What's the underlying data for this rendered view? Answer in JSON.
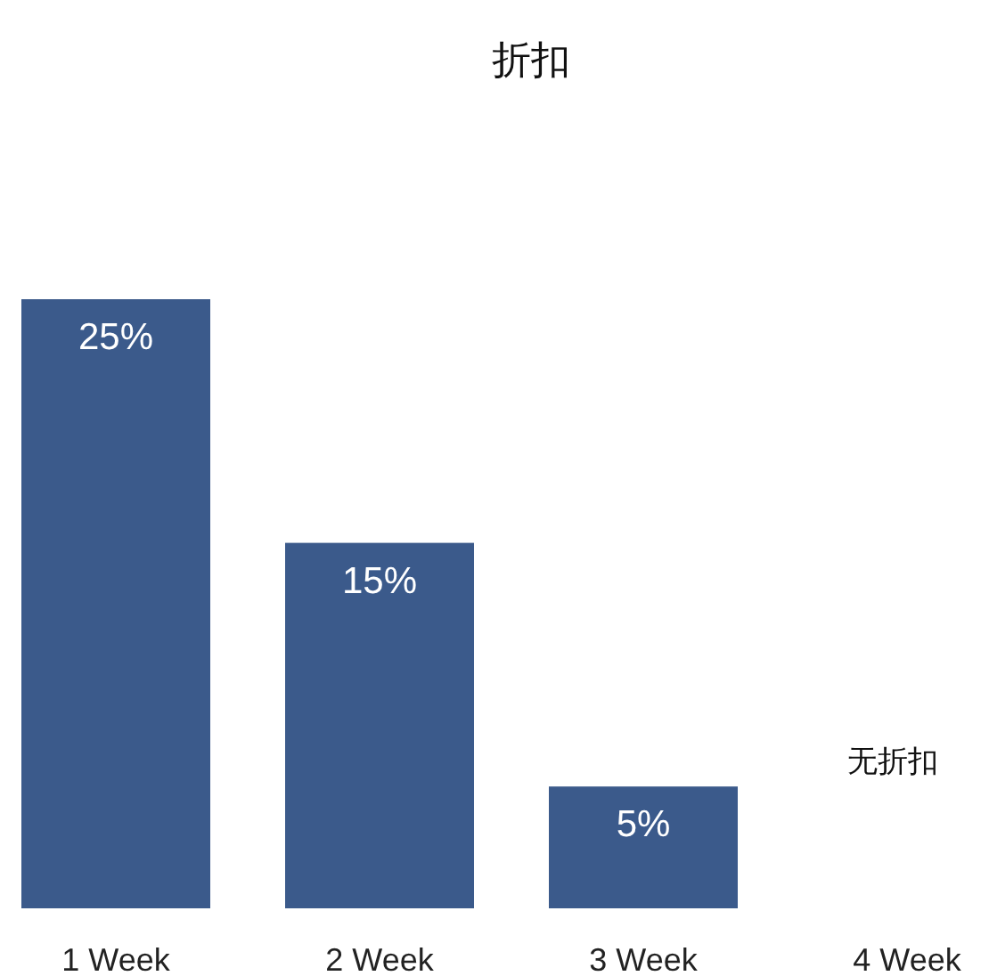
{
  "chart_data": {
    "type": "bar",
    "title": "折扣",
    "categories": [
      "1 Week",
      "2 Week",
      "3 Week",
      "4 Week"
    ],
    "values": [
      25,
      15,
      5,
      0
    ],
    "value_labels": [
      "25%",
      "15%",
      "5%",
      null
    ],
    "annotations": [
      "无折扣"
    ],
    "color": "#3b5a8b"
  }
}
